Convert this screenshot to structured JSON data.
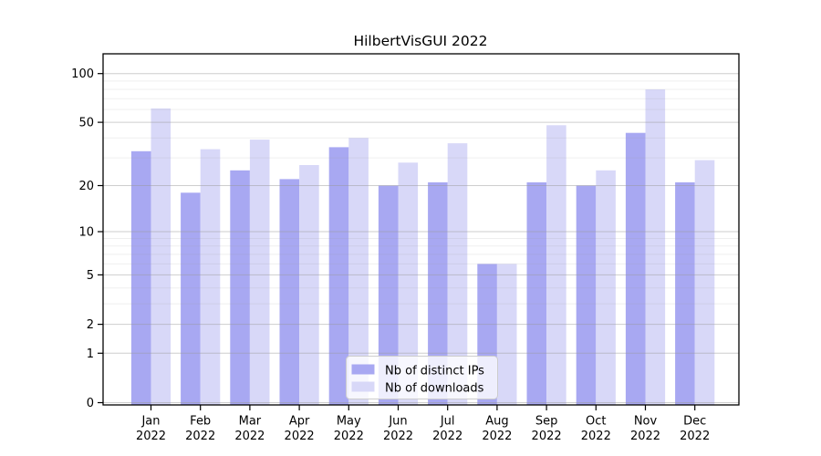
{
  "chart_data": {
    "type": "bar",
    "title": "HilbertVisGUI 2022",
    "x_categories": [
      "Jan",
      "Feb",
      "Mar",
      "Apr",
      "May",
      "Jun",
      "Jul",
      "Aug",
      "Sep",
      "Oct",
      "Nov",
      "Dec"
    ],
    "x_sublabel": "2022",
    "series": [
      {
        "name": "Nb of distinct IPs",
        "color": "#a8a8f2",
        "values": [
          33,
          18,
          25,
          22,
          35,
          20,
          21,
          6,
          21,
          20,
          43,
          21
        ]
      },
      {
        "name": "Nb of downloads",
        "color": "#d8d8f8",
        "values": [
          61,
          34,
          39,
          27,
          40,
          28,
          37,
          6,
          48,
          25,
          80,
          29
        ]
      }
    ],
    "yscale": "log1p",
    "yticks": [
      0,
      1,
      2,
      5,
      10,
      20,
      50,
      100
    ],
    "yticks_minor": [
      3,
      4,
      6,
      7,
      8,
      9,
      30,
      40,
      60,
      70,
      80,
      90
    ],
    "ylim": [
      0,
      120
    ],
    "grid": "on",
    "grid_above_bars": true,
    "legend_position": "lower-center",
    "axis_color": "#000000",
    "major_grid_color": "#cccccc",
    "minor_grid_color": "#ececec",
    "legend_border_color": "#cccccc"
  }
}
